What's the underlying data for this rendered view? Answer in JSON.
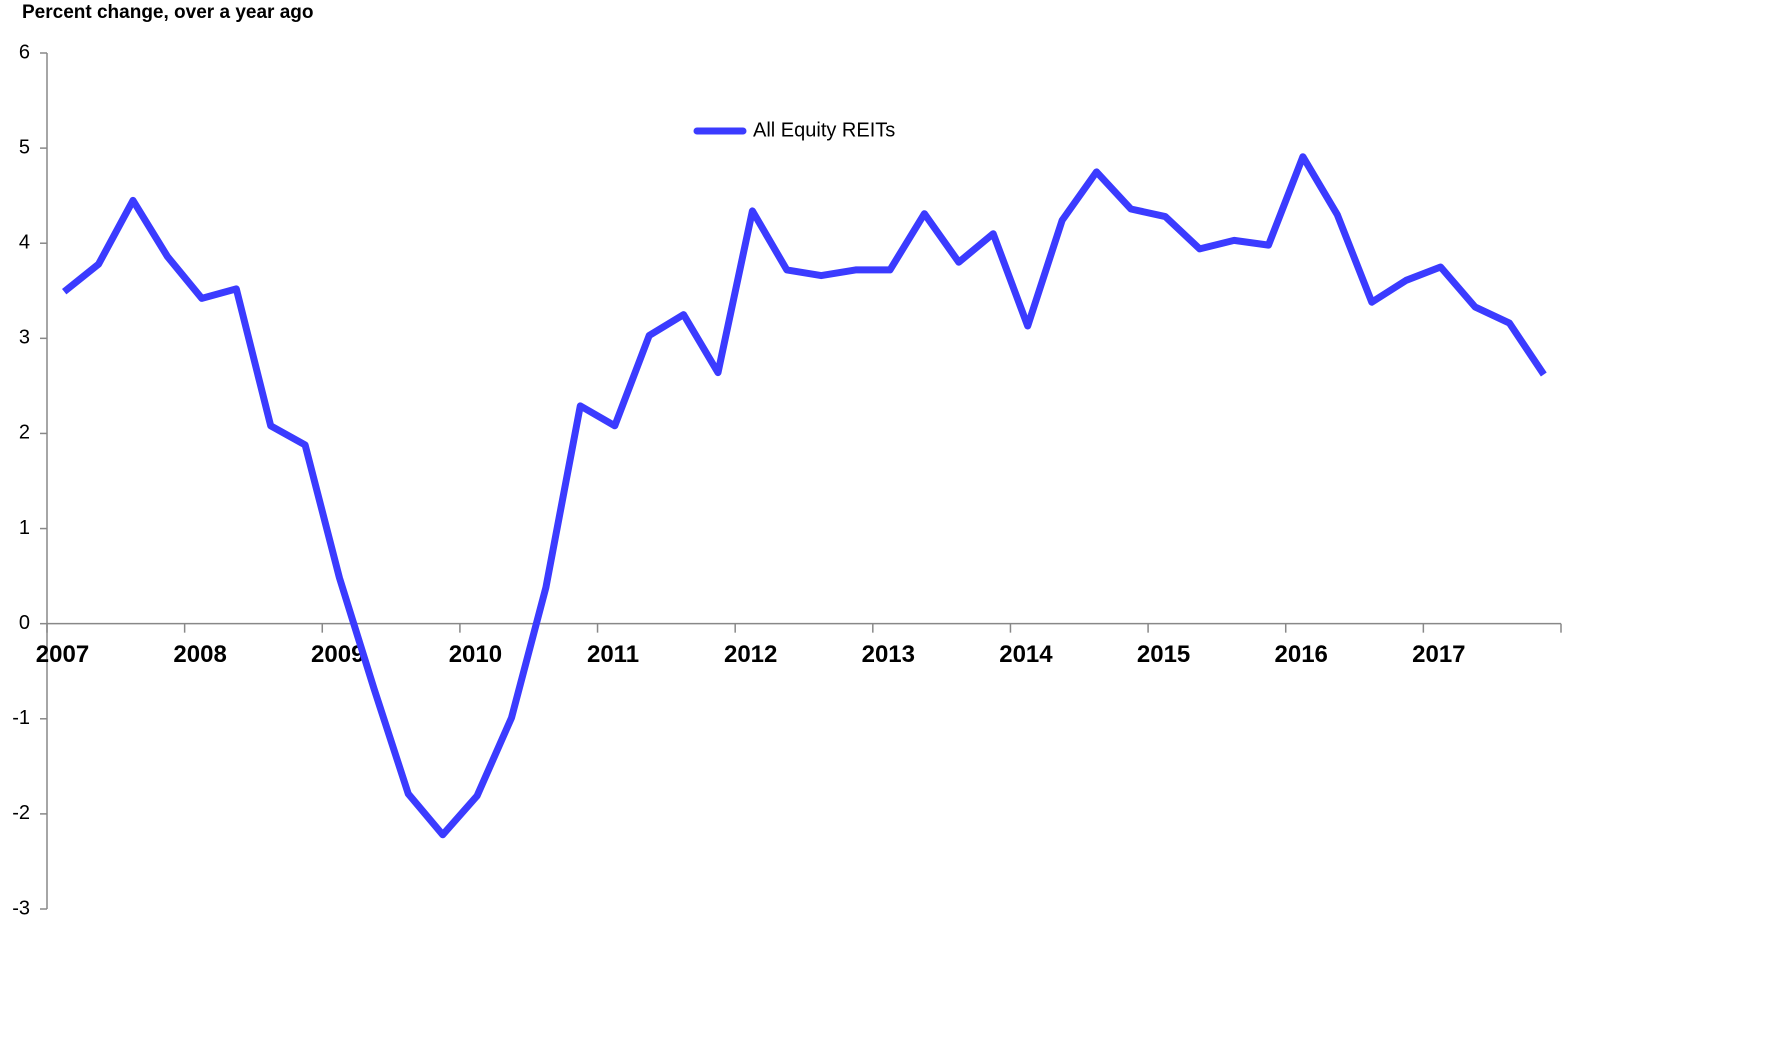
{
  "chart_data": {
    "type": "line",
    "y_axis_label": "Percent change, over a year ago",
    "categories": [
      "2007",
      null,
      null,
      null,
      "2008",
      null,
      null,
      null,
      "2009",
      null,
      null,
      null,
      "2010",
      null,
      null,
      null,
      "2011",
      null,
      null,
      null,
      "2012",
      null,
      null,
      null,
      "2013",
      null,
      null,
      null,
      "2014",
      null,
      null,
      null,
      "2015",
      null,
      null,
      null,
      "2016",
      null,
      null,
      null,
      "2017",
      null,
      null,
      null
    ],
    "series": [
      {
        "name": "All Equity REITs",
        "color": "#3b3bff",
        "values": [
          3.49,
          3.78,
          4.45,
          3.86,
          3.42,
          3.52,
          2.08,
          1.88,
          0.48,
          -0.68,
          -1.79,
          -2.22,
          -1.81,
          -0.99,
          0.38,
          2.29,
          2.08,
          3.03,
          3.25,
          2.64,
          4.34,
          3.72,
          3.66,
          3.72,
          3.72,
          4.31,
          3.8,
          4.1,
          3.13,
          4.24,
          4.75,
          4.36,
          4.28,
          3.94,
          4.03,
          3.98,
          4.91,
          4.3,
          3.38,
          3.61,
          3.75,
          3.33,
          3.16,
          2.62
        ]
      }
    ],
    "ylim": [
      -3,
      6
    ],
    "yticks": [
      -3,
      -2,
      -1,
      0,
      1,
      2,
      3,
      4,
      5,
      6
    ],
    "legend": "top"
  }
}
